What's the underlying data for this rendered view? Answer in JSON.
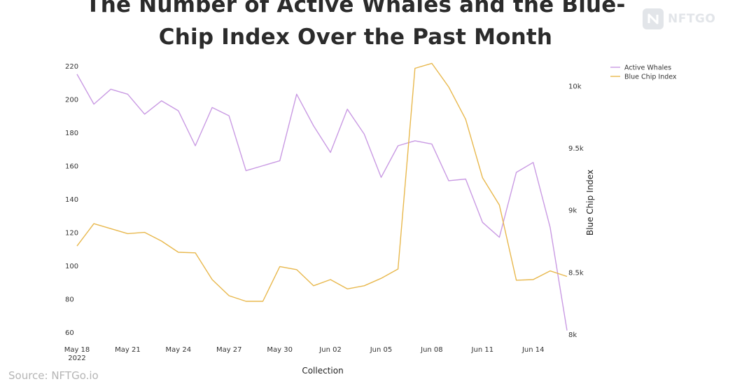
{
  "title_lines": [
    "The Number of Active Whales and the Blue-",
    "Chip Index Over the Past Month"
  ],
  "logo": {
    "text": "NFTGO",
    "icon": "nftgo-logo-icon"
  },
  "source": "Source: NFTGo.io",
  "chart_data": {
    "type": "line",
    "title": "The Number of Active Whales and the Blue-Chip Index Over the Past Month",
    "xlabel": "Collection",
    "ylabel": "",
    "y2label": "Blue Chip Index",
    "x_tick_labels": [
      {
        "index": 0,
        "label": "May 18",
        "sublabel": "2022"
      },
      {
        "index": 3,
        "label": "May 21"
      },
      {
        "index": 6,
        "label": "May 24"
      },
      {
        "index": 9,
        "label": "May 27"
      },
      {
        "index": 12,
        "label": "May 30"
      },
      {
        "index": 15,
        "label": "Jun 02"
      },
      {
        "index": 18,
        "label": "Jun 05"
      },
      {
        "index": 21,
        "label": "Jun 08"
      },
      {
        "index": 24,
        "label": "Jun 11"
      },
      {
        "index": 27,
        "label": "Jun 14"
      }
    ],
    "x_count": 30,
    "ylim": [
      60,
      220
    ],
    "yticks": [
      60,
      80,
      100,
      120,
      140,
      160,
      180,
      200,
      220
    ],
    "y2lim": [
      8000,
      10250
    ],
    "y2ticks": [
      {
        "value": 8000,
        "label": "8k"
      },
      {
        "value": 8500,
        "label": "8.5k"
      },
      {
        "value": 9000,
        "label": "9k"
      },
      {
        "value": 9500,
        "label": "9.5k"
      },
      {
        "value": 10000,
        "label": "10k"
      }
    ],
    "legend_position": "top-right",
    "grid": false,
    "series": [
      {
        "name": "Active Whales",
        "axis": "left",
        "color": "#c99ae3",
        "values": [
          215,
          197,
          206,
          203,
          191,
          199,
          193,
          172,
          195,
          190,
          157,
          160,
          163,
          203,
          184,
          168,
          194,
          179,
          153,
          172,
          175,
          173,
          151,
          152,
          126,
          117,
          156,
          162,
          123,
          61
        ]
      },
      {
        "name": "Blue Chip Index",
        "axis": "right",
        "color": "#e8b84d",
        "values": [
          8710,
          8890,
          8850,
          8810,
          8820,
          8750,
          8660,
          8655,
          8440,
          8310,
          8265,
          8265,
          8545,
          8520,
          8390,
          8440,
          8365,
          8390,
          8450,
          8525,
          10140,
          10180,
          9990,
          9730,
          9260,
          9040,
          8435,
          8440,
          8510,
          8465
        ]
      }
    ]
  }
}
